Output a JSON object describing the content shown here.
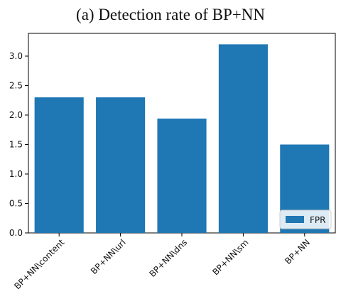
{
  "chart_data": {
    "type": "bar",
    "title": "(a) Detection rate of BP+NN",
    "categories": [
      "BP+NN\\content",
      "BP+NN\\url",
      "BP+NN\\dns",
      "BP+NN\\sm",
      "BP+NN"
    ],
    "series": [
      {
        "name": "FPR",
        "values": [
          2.3,
          2.3,
          1.94,
          3.2,
          1.5
        ],
        "color": "#1f77b4"
      }
    ],
    "xlabel": "",
    "ylabel": "",
    "ylim": [
      0,
      3.2
    ],
    "yticks": [
      "0.0",
      "0.5",
      "1.0",
      "1.5",
      "2.0",
      "2.5",
      "3.0"
    ],
    "grid": false,
    "legend_position": "bottom-right"
  }
}
